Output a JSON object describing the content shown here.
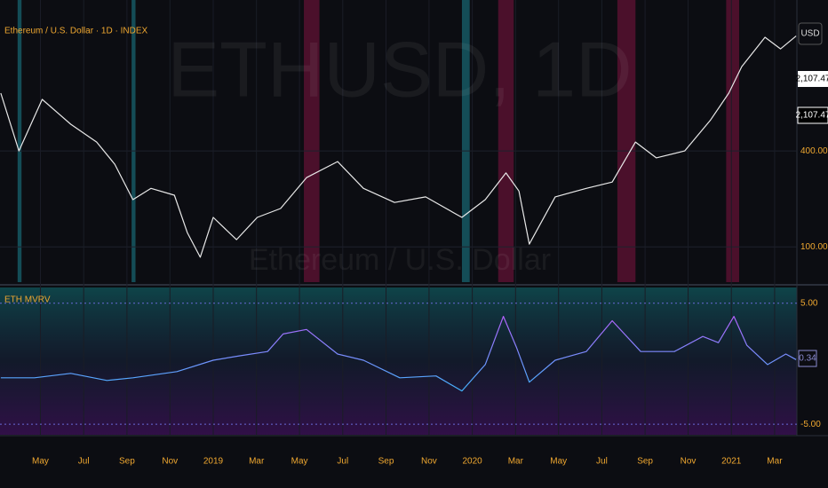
{
  "chart_data": [
    {
      "type": "line",
      "title": "Ethereum / U.S. Dollar · 1D · INDEX",
      "watermark": "ETHUSD, 1D",
      "watermark_subtitle": "Ethereum / U.S. Dollar",
      "currency": "USD",
      "price_scale_labels": [
        "2,107.47",
        "2,107.47"
      ],
      "log_scale": true,
      "grid": true,
      "x": [
        2018.18,
        2018.25,
        2018.34,
        2018.45,
        2018.55,
        2018.62,
        2018.69,
        2018.76,
        2018.85,
        2018.9,
        2018.95,
        2019.0,
        2019.09,
        2019.17,
        2019.26,
        2019.36,
        2019.48,
        2019.58,
        2019.7,
        2019.82,
        2019.96,
        2020.05,
        2020.13,
        2020.18,
        2020.22,
        2020.32,
        2020.44,
        2020.54,
        2020.63,
        2020.71,
        2020.82,
        2020.92,
        2020.99,
        2021.04,
        2021.13,
        2021.19,
        2021.25
      ],
      "series": [
        {
          "color": "#e8e8e8",
          "values": [
            923,
            400,
            843,
            589,
            455,
            330,
            198,
            233,
            211,
            123,
            86,
            153,
            111,
            153,
            174,
            272,
            343,
            233,
            190,
            206,
            153,
            198,
            291,
            224,
            104,
            206,
            233,
            255,
            455,
            362,
            400,
            627,
            923,
            1355,
            2072,
            1750,
            2107.47
          ]
        }
      ],
      "xlim": [
        2018.177,
        2021.253
      ],
      "ylim": [
        60,
        3550
      ],
      "yticks": [
        {
          "value": 400,
          "label": "400.00"
        },
        {
          "value": 100,
          "label": "100.00"
        }
      ],
      "xticks": [
        {
          "value": 2018.333,
          "label": "May"
        },
        {
          "value": 2018.5,
          "label": "Jul"
        },
        {
          "value": 2018.667,
          "label": "Sep"
        },
        {
          "value": 2018.833,
          "label": "Nov"
        },
        2019,
        {
          "value": 2019.167,
          "label": "Mar"
        },
        {
          "value": 2019.333,
          "label": "May"
        },
        {
          "value": 2019.5,
          "label": "Jul"
        },
        {
          "value": 2019.667,
          "label": "Sep"
        },
        {
          "value": 2019.833,
          "label": "Nov"
        },
        2020,
        {
          "value": 2020.167,
          "label": "Mar"
        },
        {
          "value": 2020.333,
          "label": "May"
        },
        {
          "value": 2020.5,
          "label": "Jul"
        },
        {
          "value": 2020.667,
          "label": "Sep"
        },
        {
          "value": 2020.833,
          "label": "Nov"
        },
        2021,
        {
          "value": 2021.167,
          "label": "Mar"
        }
      ],
      "highlights": [
        {
          "color": "#26c6da",
          "range": [
            2018.245,
            2018.26
          ]
        },
        {
          "color": "#26c6da",
          "range": [
            2018.685,
            2018.7
          ]
        },
        {
          "color": "#26c6da",
          "range": [
            2019.96,
            2019.99
          ]
        },
        {
          "color": "#c2185b",
          "range": [
            2019.35,
            2019.41
          ]
        },
        {
          "color": "#c2185b",
          "range": [
            2020.1,
            2020.16
          ]
        },
        {
          "color": "#c2185b",
          "range": [
            2020.56,
            2020.63
          ]
        },
        {
          "color": "#c2185b",
          "range": [
            2020.98,
            2021.03
          ]
        }
      ]
    },
    {
      "type": "line",
      "title": "ETH MVRV",
      "last_value_label": "0.34",
      "x": [
        2018.18,
        2018.31,
        2018.45,
        2018.59,
        2018.69,
        2018.86,
        2019.0,
        2019.1,
        2019.21,
        2019.27,
        2019.36,
        2019.48,
        2019.58,
        2019.72,
        2019.86,
        2019.96,
        2020.05,
        2020.12,
        2020.17,
        2020.22,
        2020.32,
        2020.44,
        2020.54,
        2020.65,
        2020.78,
        2020.89,
        2020.95,
        2021.01,
        2021.06,
        2021.14,
        2021.21,
        2021.25
      ],
      "series": [
        {
          "colors": [
            "#00e5ff",
            "#e040fb"
          ],
          "values": [
            -1.16,
            -1.16,
            -0.8,
            -1.38,
            -1.16,
            -0.65,
            0.29,
            0.65,
            1.01,
            2.46,
            2.83,
            0.8,
            0.29,
            -1.16,
            -1.01,
            -2.25,
            -0.07,
            3.91,
            1.38,
            -1.52,
            0.29,
            1.01,
            3.55,
            1.01,
            1.01,
            2.25,
            1.74,
            3.91,
            1.52,
            -0.07,
            0.8,
            0.34
          ]
        }
      ],
      "xlim": [
        2018.177,
        2021.253
      ],
      "ylim": [
        -5.87,
        6.3
      ],
      "yticks": [
        {
          "value": 5,
          "label": "5.00"
        },
        {
          "value": -5,
          "label": "-5.00"
        }
      ]
    }
  ]
}
